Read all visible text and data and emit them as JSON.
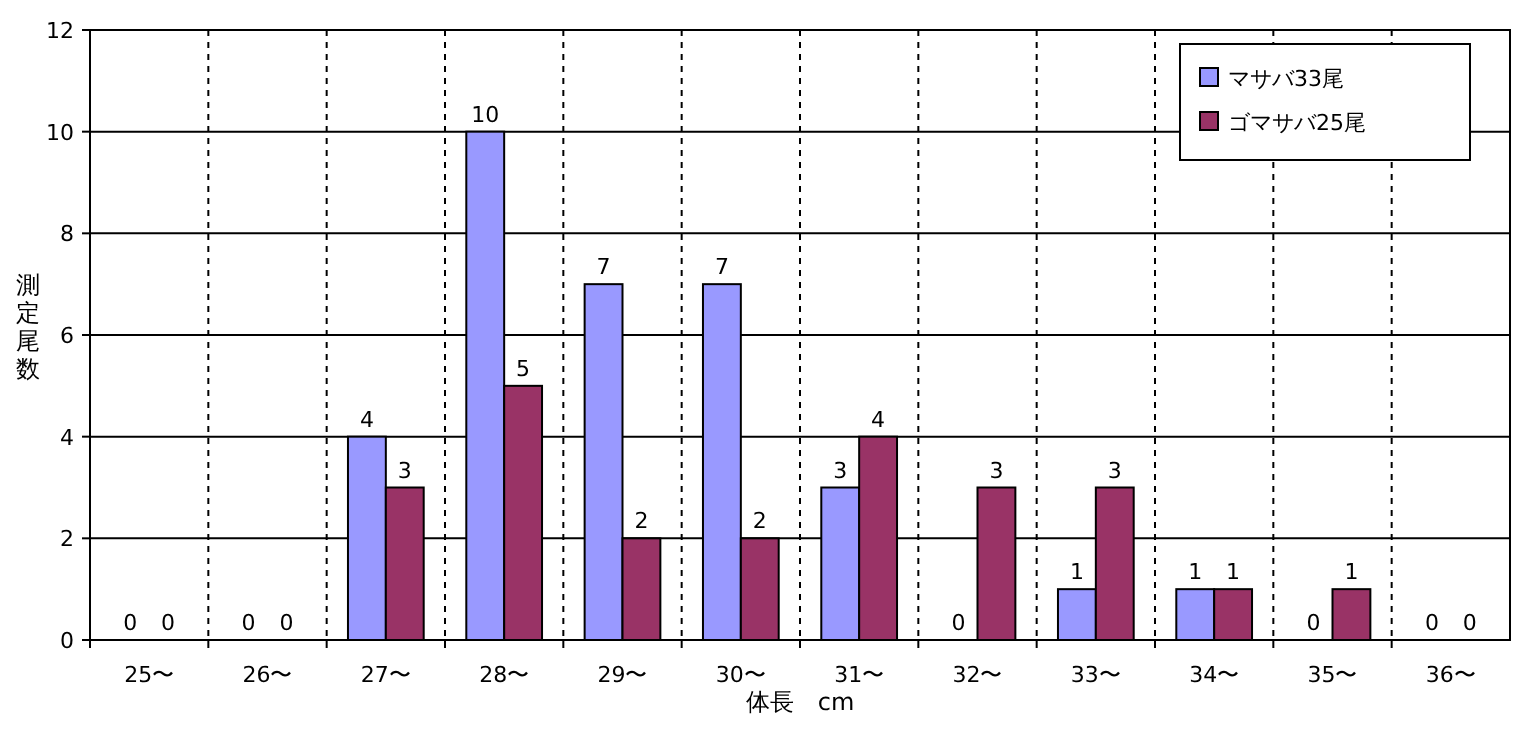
{
  "chart_data": {
    "type": "bar",
    "xlabel": "体長　cm",
    "ylabel": "測定尾数",
    "categories": [
      "25〜",
      "26〜",
      "27〜",
      "28〜",
      "29〜",
      "30〜",
      "31〜",
      "32〜",
      "33〜",
      "34〜",
      "35〜",
      "36〜"
    ],
    "series": [
      {
        "name": "マサバ33尾",
        "color": "#9999ff",
        "values": [
          0,
          0,
          4,
          10,
          7,
          7,
          3,
          0,
          1,
          1,
          0,
          0
        ]
      },
      {
        "name": "ゴマサバ25尾",
        "color": "#993366",
        "values": [
          0,
          0,
          3,
          5,
          2,
          2,
          4,
          3,
          3,
          1,
          1,
          0
        ]
      }
    ],
    "ylim": [
      0,
      12
    ],
    "yticks": [
      0,
      2,
      4,
      6,
      8,
      10,
      12
    ],
    "grid": true,
    "legend": "top right",
    "data_labels": true
  }
}
